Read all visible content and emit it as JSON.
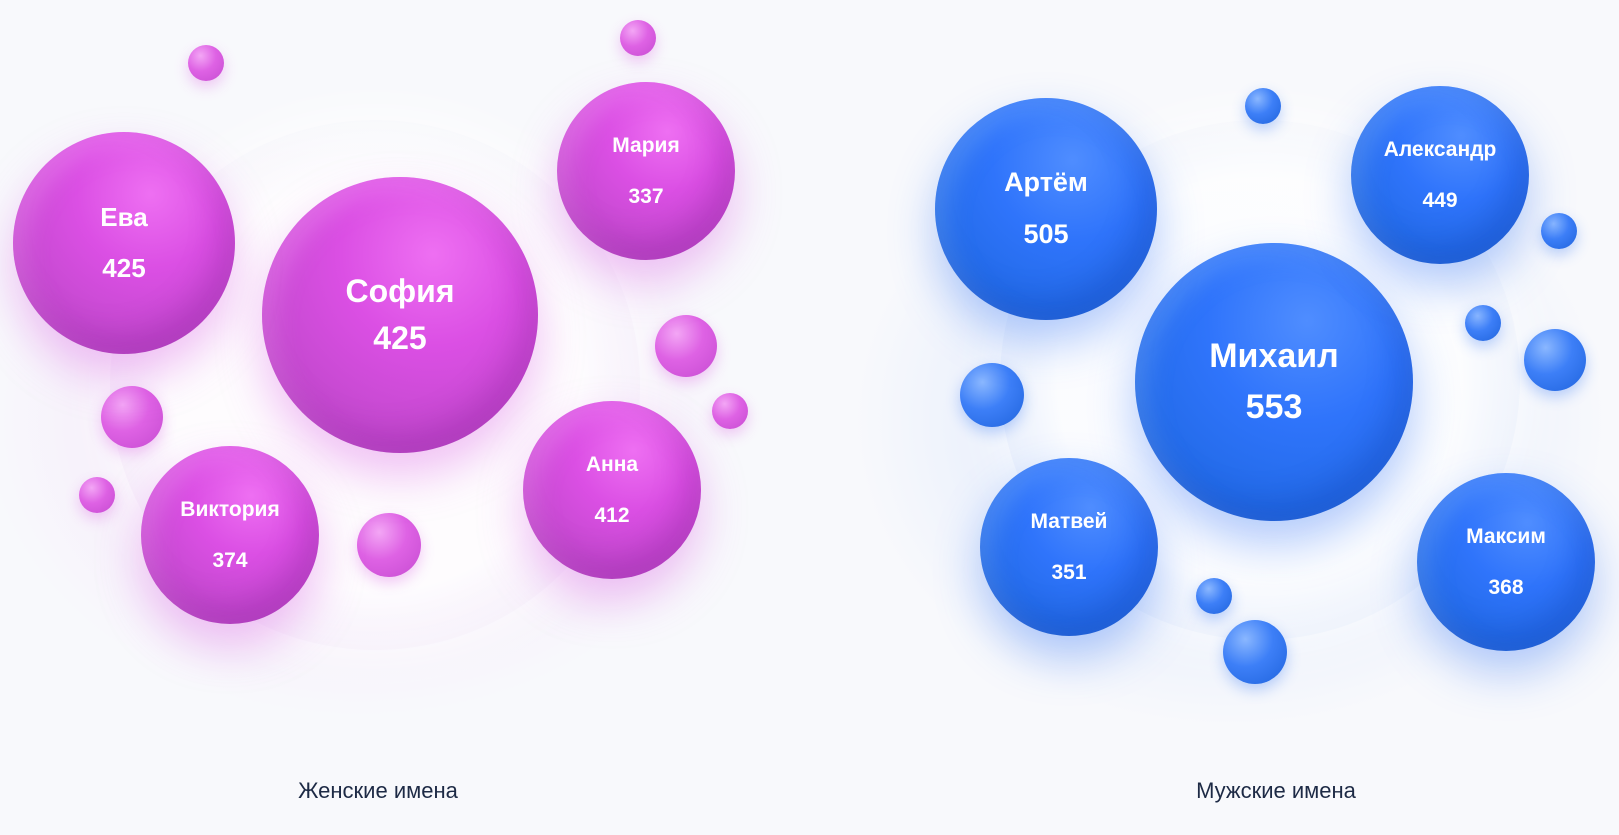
{
  "chart_data": [
    {
      "type": "bubble",
      "caption": "Женские имена",
      "color": "#d94fe3",
      "items": [
        {
          "name": "София",
          "value": 425
        },
        {
          "name": "Ева",
          "value": 425
        },
        {
          "name": "Мария",
          "value": 337
        },
        {
          "name": "Анна",
          "value": 412
        },
        {
          "name": "Виктория",
          "value": 374
        }
      ]
    },
    {
      "type": "bubble",
      "caption": "Мужские имена",
      "color": "#2f74fb",
      "items": [
        {
          "name": "Михаил",
          "value": 553
        },
        {
          "name": "Артём",
          "value": 505
        },
        {
          "name": "Александр",
          "value": 449
        },
        {
          "name": "Матвей",
          "value": 351
        },
        {
          "name": "Максим",
          "value": 368
        }
      ]
    }
  ]
}
